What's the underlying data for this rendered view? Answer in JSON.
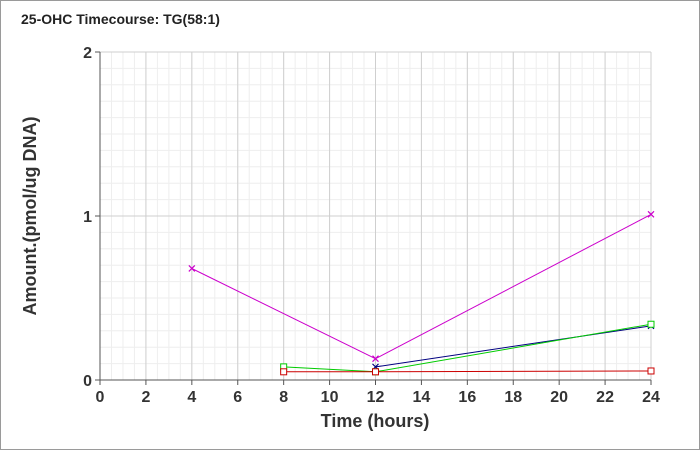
{
  "chart_data": {
    "type": "line",
    "title": "25-OHC Timecourse: TG(58:1)",
    "xlabel": "Time (hours)",
    "ylabel": "Amount.(pmol/ug DNA)",
    "xlim": [
      0,
      24
    ],
    "ylim": [
      0,
      2
    ],
    "x_ticks": [
      0,
      2,
      4,
      6,
      8,
      10,
      12,
      14,
      16,
      18,
      20,
      22,
      24
    ],
    "y_ticks": [
      0,
      1,
      2
    ],
    "grid": true,
    "legend": "none",
    "series": [
      {
        "color": "#cc00cc",
        "marker": "x",
        "points": [
          [
            4,
            0.68
          ],
          [
            12,
            0.13
          ],
          [
            24,
            1.01
          ]
        ]
      },
      {
        "color": "#000080",
        "marker": "x",
        "points": [
          [
            12,
            0.08
          ],
          [
            24,
            0.33
          ]
        ]
      },
      {
        "color": "#00cc00",
        "marker": "square",
        "points": [
          [
            8,
            0.08
          ],
          [
            12,
            0.05
          ],
          [
            24,
            0.34
          ]
        ]
      },
      {
        "color": "#cc0000",
        "marker": "square",
        "points": [
          [
            8,
            0.05
          ],
          [
            12,
            0.05
          ],
          [
            24,
            0.055
          ]
        ]
      }
    ]
  }
}
